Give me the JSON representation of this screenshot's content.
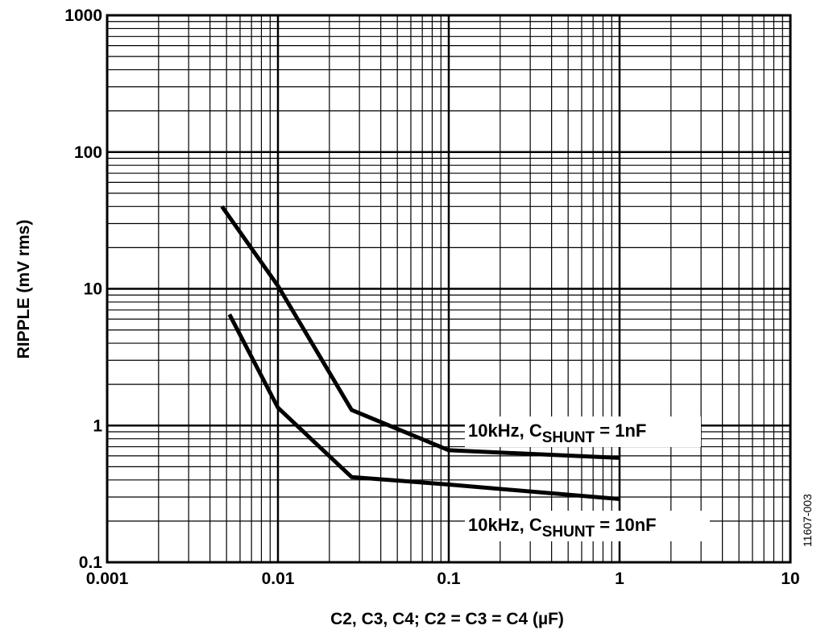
{
  "chart_data": {
    "type": "line",
    "x_scale": "log",
    "y_scale": "log",
    "xlim": [
      0.001,
      10
    ],
    "ylim": [
      0.1,
      1000
    ],
    "x_ticks": [
      {
        "value": 0.001,
        "label": "0.001"
      },
      {
        "value": 0.01,
        "label": "0.01"
      },
      {
        "value": 0.1,
        "label": "0.1"
      },
      {
        "value": 1,
        "label": "1"
      },
      {
        "value": 10,
        "label": "10"
      }
    ],
    "y_ticks": [
      {
        "value": 0.1,
        "label": "0.1"
      },
      {
        "value": 1,
        "label": "1"
      },
      {
        "value": 10,
        "label": "10"
      },
      {
        "value": 100,
        "label": "100"
      },
      {
        "value": 1000,
        "label": "1000"
      }
    ],
    "xlabel": "C2, C3, C4; C2 = C3 = C4 (µF)",
    "ylabel": "RIPPLE (mV rms)",
    "grid": true,
    "series": [
      {
        "name": "10kHz, C_SHUNT = 1nF",
        "label_main": "10kHz, C",
        "label_sub": "SHUNT",
        "label_tail": " = 1nF",
        "points": [
          {
            "x": 0.0047,
            "y": 40
          },
          {
            "x": 0.01,
            "y": 10.5
          },
          {
            "x": 0.027,
            "y": 1.3
          },
          {
            "x": 0.1,
            "y": 0.66
          },
          {
            "x": 1,
            "y": 0.58
          }
        ]
      },
      {
        "name": "10kHz, C_SHUNT = 10nF",
        "label_main": "10kHz, C",
        "label_sub": "SHUNT",
        "label_tail": " = 10nF",
        "points": [
          {
            "x": 0.0052,
            "y": 6.5
          },
          {
            "x": 0.01,
            "y": 1.35
          },
          {
            "x": 0.027,
            "y": 0.42
          },
          {
            "x": 0.1,
            "y": 0.37
          },
          {
            "x": 1,
            "y": 0.29
          }
        ]
      }
    ],
    "figure_id": "11607-003"
  }
}
